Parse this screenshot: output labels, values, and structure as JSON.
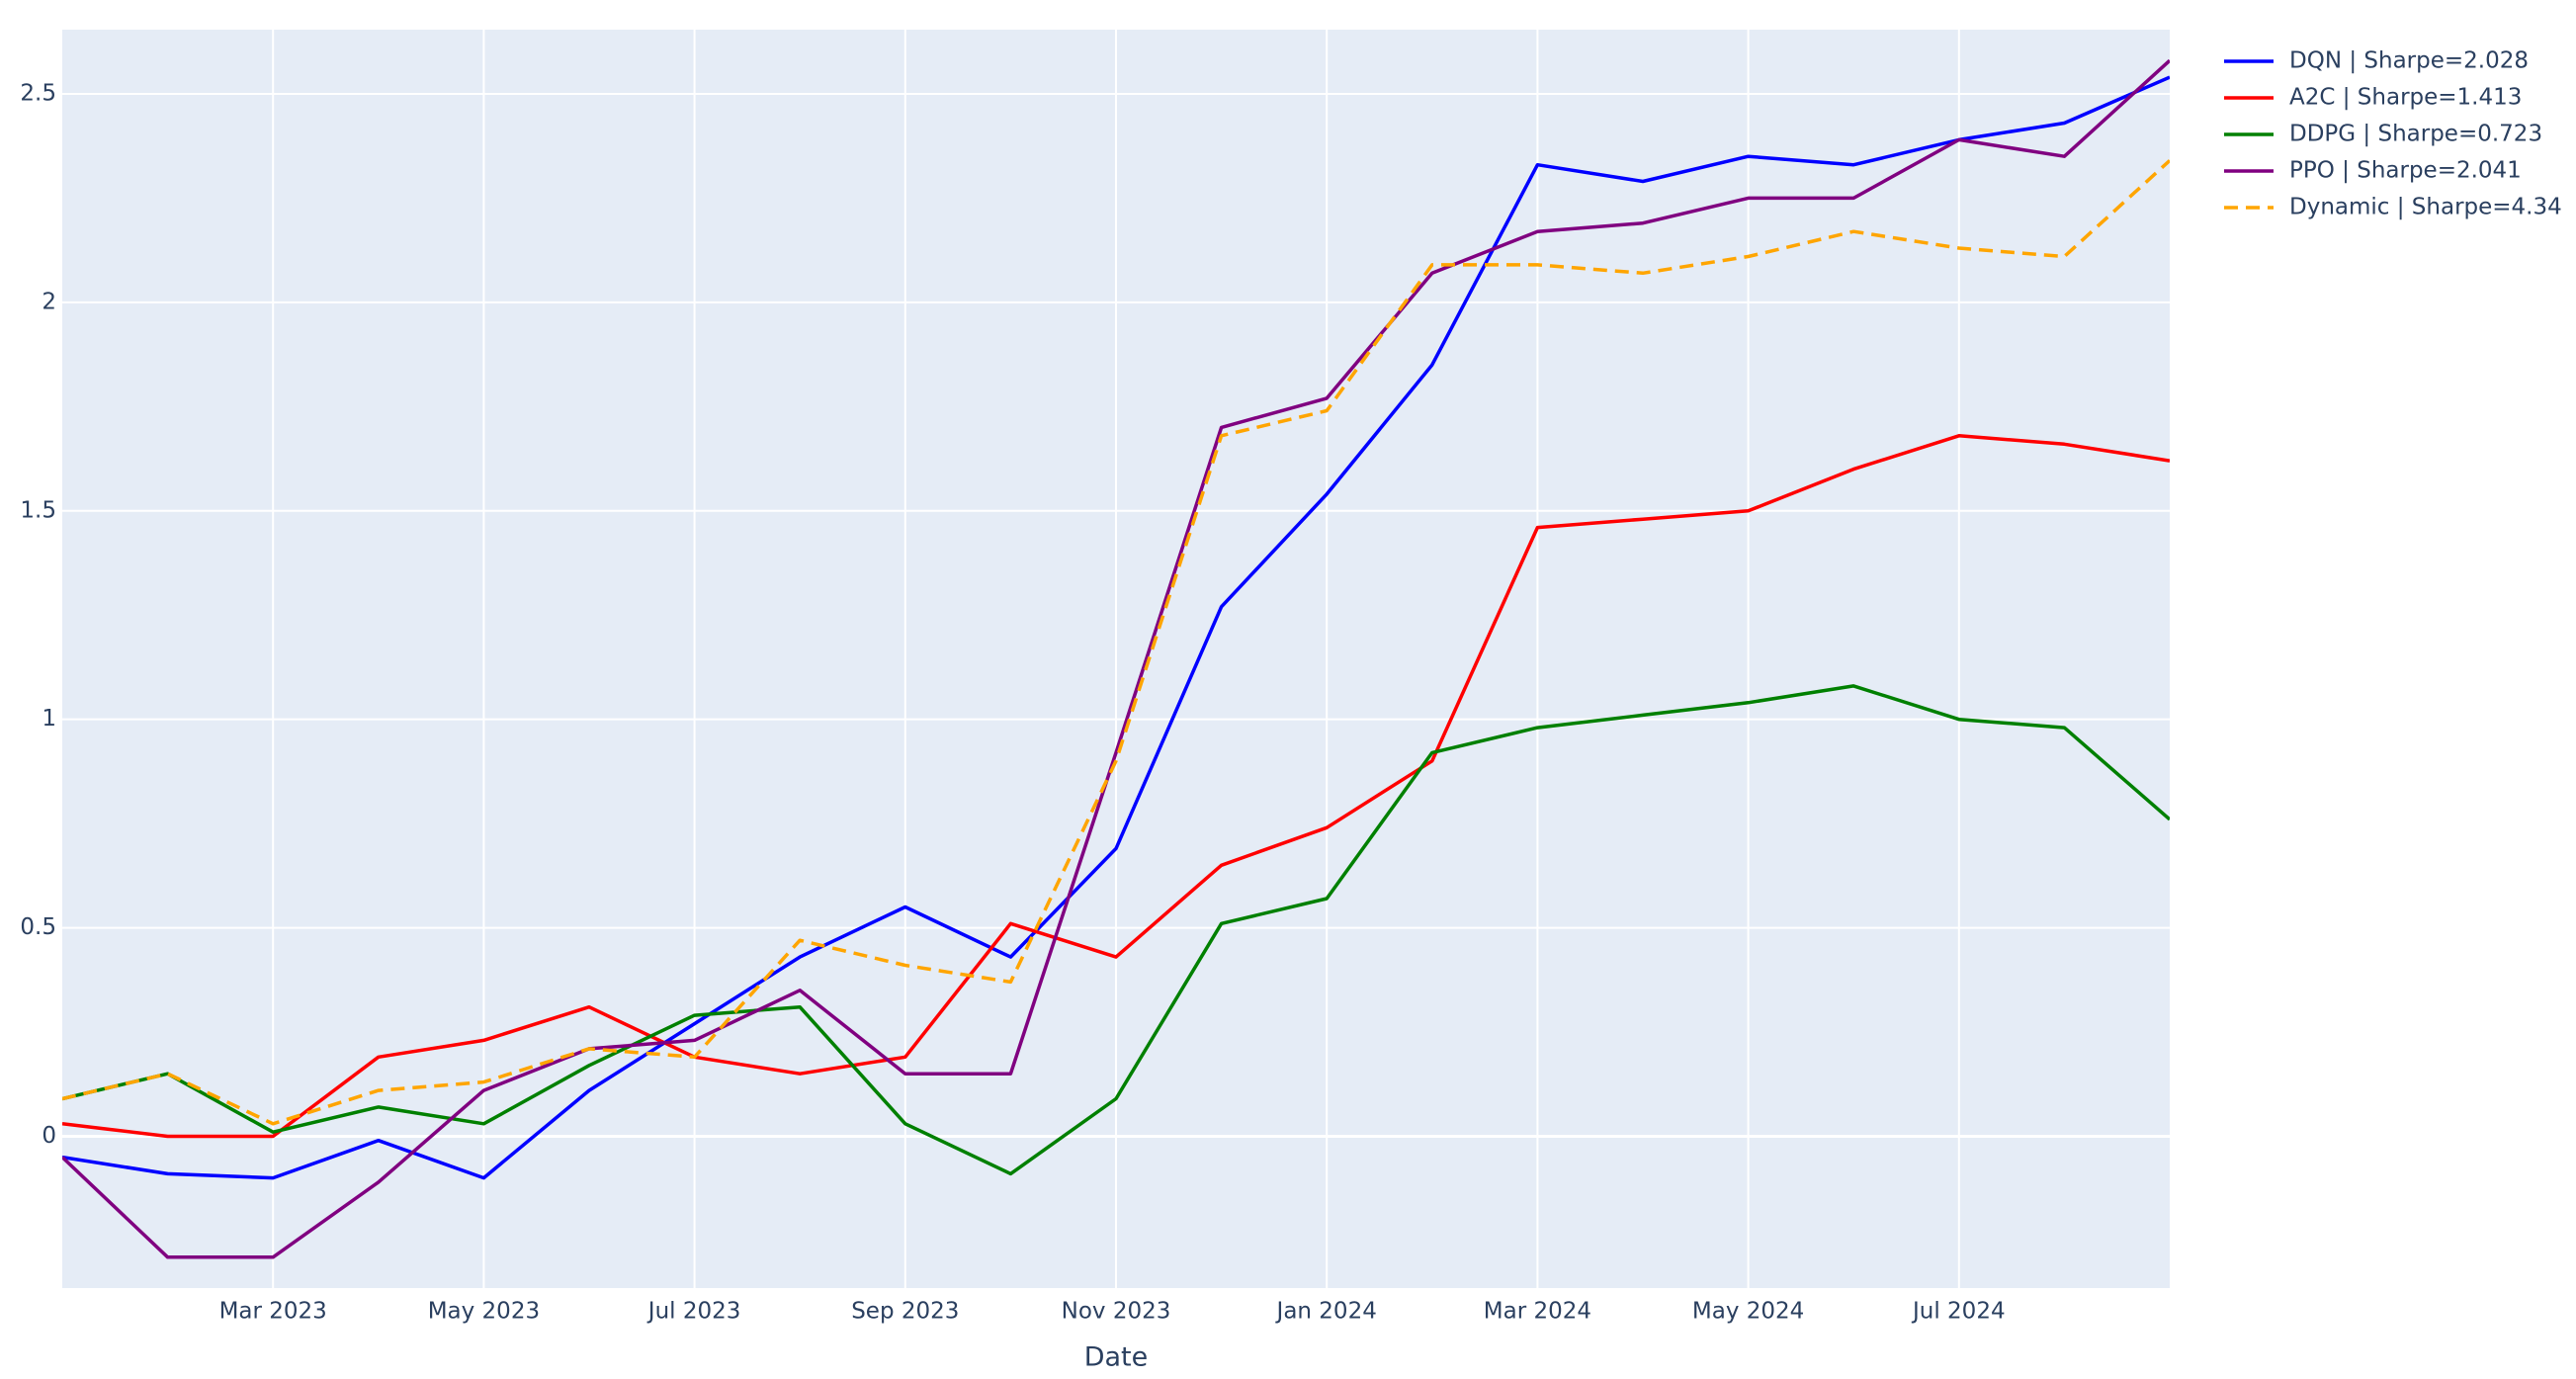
{
  "chart_data": {
    "type": "line",
    "x_label": "Date",
    "x": [
      "2023-01",
      "2023-02",
      "2023-03",
      "2023-04",
      "2023-05",
      "2023-06",
      "2023-07",
      "2023-08",
      "2023-09",
      "2023-10",
      "2023-11",
      "2023-12",
      "2024-01",
      "2024-02",
      "2024-03",
      "2024-04",
      "2024-05",
      "2024-06",
      "2024-07",
      "2024-08",
      "2024-09"
    ],
    "xlim": [
      "2023-01",
      "2024-09"
    ],
    "xticks": [
      {
        "value": "2023-03",
        "label": "Mar 2023"
      },
      {
        "value": "2023-05",
        "label": "May 2023"
      },
      {
        "value": "2023-07",
        "label": "Jul 2023"
      },
      {
        "value": "2023-09",
        "label": "Sep 2023"
      },
      {
        "value": "2023-11",
        "label": "Nov 2023"
      },
      {
        "value": "2024-01",
        "label": "Jan 2024"
      },
      {
        "value": "2024-03",
        "label": "Mar 2024"
      },
      {
        "value": "2024-05",
        "label": "May 2024"
      },
      {
        "value": "2024-07",
        "label": "Jul 2024"
      }
    ],
    "ylim": [
      -0.364,
      2.654
    ],
    "yticks": [
      0,
      0.5,
      1,
      1.5,
      2,
      2.5
    ],
    "grid": true,
    "legend": "outside-right",
    "series": [
      {
        "name": "DQN | Sharpe=2.028",
        "color": "#0000ff",
        "dash": "solid",
        "values": [
          -0.05,
          -0.09,
          -0.1,
          -0.01,
          -0.1,
          0.11,
          0.27,
          0.43,
          0.55,
          0.43,
          0.69,
          1.27,
          1.54,
          1.85,
          2.33,
          2.29,
          2.35,
          2.33,
          2.39,
          2.43,
          2.54
        ]
      },
      {
        "name": "A2C | Sharpe=1.413",
        "color": "#ff0000",
        "dash": "solid",
        "values": [
          0.03,
          0.0,
          0.0,
          0.19,
          0.23,
          0.31,
          0.19,
          0.15,
          0.19,
          0.51,
          0.43,
          0.65,
          0.74,
          0.9,
          1.46,
          1.48,
          1.5,
          1.6,
          1.68,
          1.66,
          1.62
        ]
      },
      {
        "name": "DDPG | Sharpe=0.723",
        "color": "#008000",
        "dash": "solid",
        "values": [
          0.09,
          0.15,
          0.01,
          0.07,
          0.03,
          0.17,
          0.29,
          0.31,
          0.03,
          -0.09,
          0.09,
          0.51,
          0.57,
          0.92,
          0.98,
          1.01,
          1.04,
          1.08,
          1.0,
          0.98,
          0.76
        ]
      },
      {
        "name": "PPO | Sharpe=2.041",
        "color": "#800080",
        "dash": "solid",
        "values": [
          -0.05,
          -0.29,
          -0.29,
          -0.11,
          0.11,
          0.21,
          0.23,
          0.35,
          0.15,
          0.15,
          0.92,
          1.7,
          1.77,
          2.07,
          2.17,
          2.19,
          2.25,
          2.25,
          2.39,
          2.35,
          2.58
        ]
      },
      {
        "name": "Dynamic | Sharpe=4.34",
        "color": "#ffa500",
        "dash": "dash",
        "values": [
          0.09,
          0.15,
          0.03,
          0.11,
          0.13,
          0.21,
          0.19,
          0.47,
          0.41,
          0.37,
          0.9,
          1.68,
          1.74,
          2.09,
          2.09,
          2.07,
          2.11,
          2.17,
          2.13,
          2.11,
          2.34
        ]
      }
    ]
  }
}
